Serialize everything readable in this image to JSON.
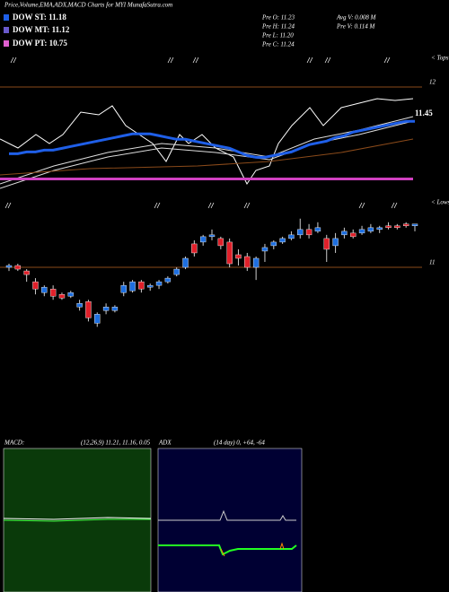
{
  "title": "Price,Volume,EMA,ADX,MACD Charts for MYI MunafaSutra.com",
  "legend": [
    "DOW ST: 11.18",
    "DOW MT: 11.12",
    "DOW PT: 10.75"
  ],
  "info": [
    "Pre  O: 11.23",
    "Pre  H: 11.24",
    "Pre  L: 11.20",
    "Pre  C: 11.24",
    "Avg  V: 0.008  M",
    "Pre  V: 0.114  M"
  ],
  "tops_label": "< Tops",
  "lows_label": "< Lows",
  "ema_label": "11.45",
  "macd": {
    "label": "MACD:",
    "params": "(12,26,9) 11.21, 11.16, 0.05"
  },
  "adx": {
    "label": "ADX",
    "params": "(14  day) 0, +64, -64"
  },
  "chart_data": {
    "type": "candlestick",
    "ylim": [
      10.095,
      12.184
    ],
    "yticks": [
      11,
      12
    ],
    "up_color": "#1e6fe0",
    "down_color": "#e0202a",
    "open": [
      11.0,
      11.01,
      10.98,
      10.92,
      10.86,
      10.88,
      10.85,
      10.84,
      10.78,
      10.81,
      10.69,
      10.76,
      10.76,
      10.86,
      10.87,
      10.92,
      10.89,
      10.9,
      10.92,
      10.96,
      11.0,
      11.13,
      11.14,
      11.17,
      11.16,
      11.14,
      11.07,
      11.06,
      11.0,
      11.09,
      11.12,
      11.14,
      11.16,
      11.18,
      11.21,
      11.2,
      11.16,
      11.12,
      11.18,
      11.19,
      11.19,
      11.2,
      11.21,
      11.23,
      11.23,
      11.24,
      11.23
    ],
    "high": [
      11.02,
      11.02,
      10.99,
      10.94,
      10.9,
      10.9,
      10.86,
      10.87,
      10.82,
      10.82,
      10.75,
      10.8,
      10.79,
      10.92,
      10.93,
      10.93,
      10.91,
      10.93,
      10.95,
      11.0,
      11.06,
      11.15,
      11.18,
      11.21,
      11.17,
      11.16,
      11.1,
      11.08,
      11.06,
      11.13,
      11.15,
      11.17,
      11.2,
      11.27,
      11.24,
      11.25,
      11.18,
      11.19,
      11.22,
      11.21,
      11.23,
      11.24,
      11.23,
      11.25,
      11.24,
      11.25,
      11.24
    ],
    "low": [
      10.98,
      10.98,
      10.92,
      10.85,
      10.84,
      10.82,
      10.82,
      10.83,
      10.76,
      10.7,
      10.67,
      10.74,
      10.75,
      10.84,
      10.86,
      10.86,
      10.87,
      10.88,
      10.91,
      10.95,
      10.99,
      11.06,
      11.12,
      11.15,
      11.1,
      11.0,
      11.01,
      10.98,
      10.93,
      11.03,
      11.1,
      11.13,
      11.15,
      11.16,
      11.16,
      11.19,
      11.03,
      11.08,
      11.16,
      11.16,
      11.18,
      11.19,
      11.19,
      11.21,
      11.21,
      11.22,
      11.2
    ],
    "close": [
      11.01,
      10.99,
      10.96,
      10.88,
      10.89,
      10.84,
      10.83,
      10.86,
      10.8,
      10.72,
      10.74,
      10.78,
      10.78,
      10.9,
      10.92,
      10.88,
      10.9,
      10.92,
      10.94,
      10.99,
      11.05,
      11.08,
      11.17,
      11.18,
      11.12,
      11.02,
      11.05,
      11.0,
      11.05,
      11.11,
      11.14,
      11.16,
      11.18,
      11.21,
      11.18,
      11.22,
      11.1,
      11.16,
      11.2,
      11.17,
      11.21,
      11.22,
      11.22,
      11.22,
      11.22,
      11.23,
      11.24
    ],
    "ema": {
      "color": "#1f5fe8",
      "values": [
        11.63,
        11.63,
        11.64,
        11.64,
        11.65,
        11.65,
        11.66,
        11.67,
        11.68,
        11.69,
        11.7,
        11.71,
        11.72,
        11.73,
        11.74,
        11.74,
        11.74,
        11.73,
        11.72,
        11.71,
        11.71,
        11.7,
        11.69,
        11.68,
        11.67,
        11.66,
        11.64,
        11.62,
        11.61,
        11.61,
        11.62,
        11.63,
        11.64,
        11.66,
        11.68,
        11.69,
        11.7,
        11.72,
        11.73,
        11.75,
        11.76,
        11.77,
        11.78,
        11.79,
        11.8,
        11.81,
        11.81
      ]
    },
    "level": {
      "color": "#d040c0",
      "value": 11.49
    },
    "grid_color": "#8a4a1a"
  }
}
